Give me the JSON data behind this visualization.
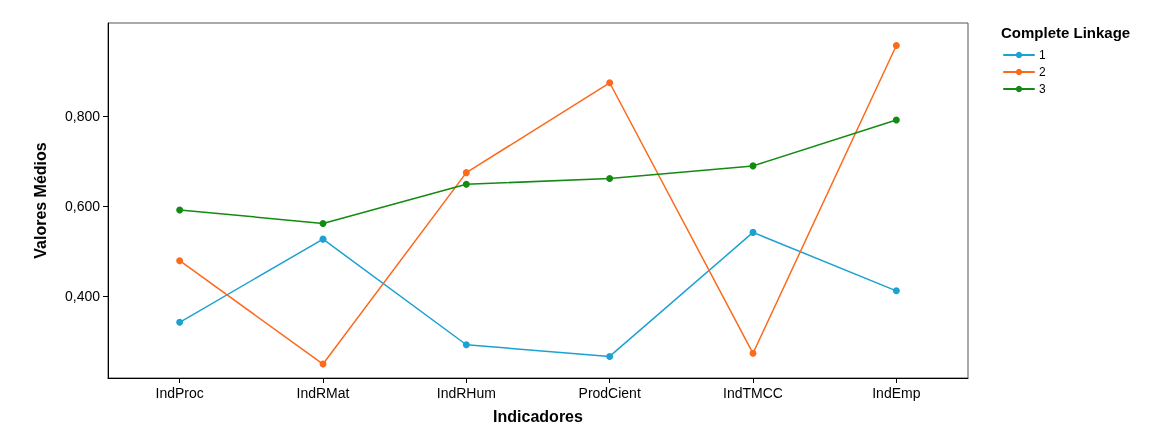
{
  "chart_data": {
    "type": "line",
    "xlabel": "Indicadores",
    "ylabel": "Valores Médios",
    "legend_title": "Complete Linkage",
    "categories": [
      "IndProc",
      "IndRMat",
      "IndRHum",
      "ProdCient",
      "IndTMCC",
      "IndEmp"
    ],
    "series": [
      {
        "name": "1",
        "color": "#1ba1d2",
        "values": [
          0.341,
          0.526,
          0.291,
          0.265,
          0.541,
          0.411
        ]
      },
      {
        "name": "2",
        "color": "#fc6a1c",
        "values": [
          0.478,
          0.248,
          0.674,
          0.874,
          0.272,
          0.957
        ]
      },
      {
        "name": "3",
        "color": "#138b13",
        "values": [
          0.591,
          0.561,
          0.648,
          0.661,
          0.689,
          0.791
        ]
      }
    ],
    "ylim": [
      0.217,
      1.007
    ],
    "yticks": [
      {
        "value": 0.4,
        "label": "0,400"
      },
      {
        "value": 0.6,
        "label": "0,600"
      },
      {
        "value": 0.8,
        "label": "0,800"
      }
    ],
    "grid": false,
    "legend": "top right",
    "marker": "circle",
    "line_style": "solid"
  }
}
